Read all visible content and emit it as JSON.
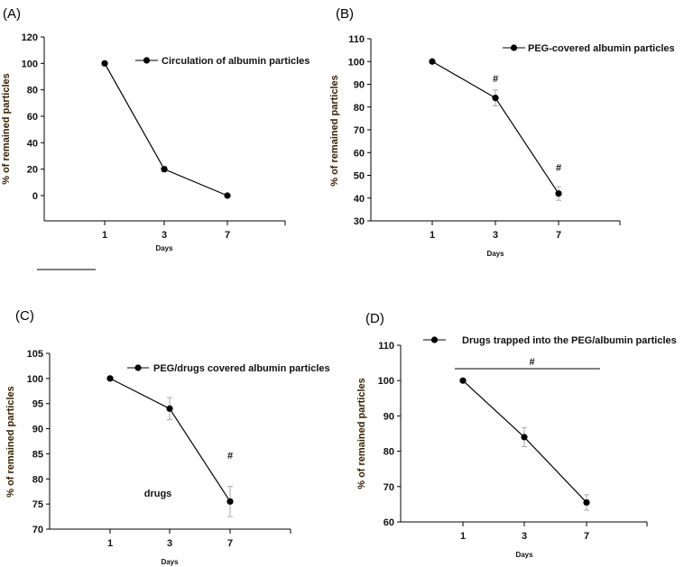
{
  "chart_data": [
    {
      "type": "line",
      "panel_label": "(A)",
      "legend": "Circulation of albumin particles",
      "xlabel": "Days",
      "ylabel": "% of remained particles",
      "categories": [
        "1",
        "3",
        "7"
      ],
      "values": [
        100,
        20,
        0
      ],
      "errors": [
        0,
        2,
        0
      ],
      "ylim": [
        -20,
        120
      ],
      "yticks": [
        0,
        20,
        40,
        60,
        80,
        100,
        120
      ],
      "annotations": [],
      "significance_bar": {
        "label": ""
      },
      "grid": false,
      "legend_position": "top-right"
    },
    {
      "type": "line",
      "panel_label": "(B)",
      "legend": "PEG-covered albumin particles",
      "xlabel": "Days",
      "ylabel": "% of remained particles",
      "categories": [
        "1",
        "3",
        "7"
      ],
      "values": [
        100,
        84,
        42
      ],
      "errors": [
        0,
        3.5,
        3
      ],
      "ylim": [
        30,
        110
      ],
      "yticks": [
        30,
        40,
        50,
        60,
        70,
        80,
        90,
        100,
        110
      ],
      "annotations": [
        {
          "text": "#",
          "category": "3",
          "y": 91
        },
        {
          "text": "#",
          "category": "7",
          "y": 52
        }
      ],
      "significance_bar": {
        "label": ""
      },
      "grid": false,
      "legend_position": "top-right"
    },
    {
      "type": "line",
      "panel_label": "(C)",
      "legend": "PEG/drugs covered albumin particles",
      "xlabel": "Days",
      "ylabel": "% of remained particles",
      "categories": [
        "1",
        "3",
        "7"
      ],
      "values": [
        100,
        94,
        75.5
      ],
      "errors": [
        0,
        2.2,
        3
      ],
      "ylim": [
        70,
        105
      ],
      "yticks": [
        70,
        75,
        80,
        85,
        90,
        95,
        100,
        105
      ],
      "annotations": [
        {
          "text": "#",
          "category": "7",
          "y": 84
        },
        {
          "text": "drugs",
          "category": "2",
          "y": 76.5
        }
      ],
      "grid": false,
      "legend_position": "top-right"
    },
    {
      "type": "line",
      "panel_label": "(D)",
      "legend": "Drugs trapped into the PEG/albumin particles",
      "xlabel": "Days",
      "ylabel": "% of remained particles",
      "categories": [
        "1",
        "3",
        "7"
      ],
      "values": [
        100,
        84,
        65.5
      ],
      "errors": [
        0,
        2.7,
        2.2
      ],
      "ylim": [
        60,
        110
      ],
      "yticks": [
        60,
        70,
        80,
        90,
        100,
        110
      ],
      "annotations": [],
      "significance_bar": {
        "label": "#"
      },
      "grid": false,
      "legend_position": "top"
    }
  ]
}
